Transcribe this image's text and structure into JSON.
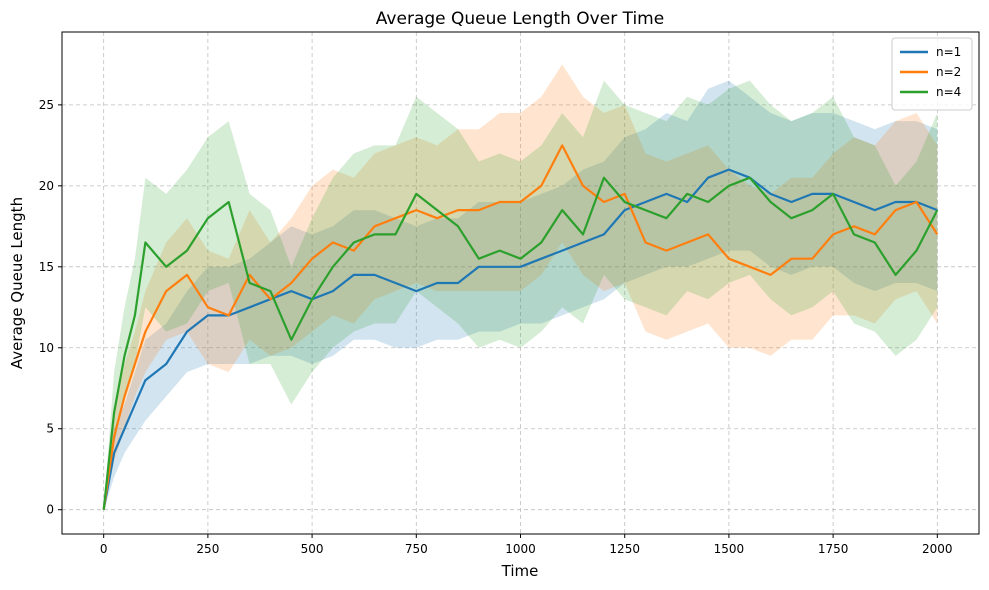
{
  "chart_data": {
    "type": "line",
    "title": "Average Queue Length Over Time",
    "xlabel": "Time",
    "ylabel": "Average Queue Length",
    "xlim": [
      -100,
      2100
    ],
    "ylim": [
      -1.5,
      29.5
    ],
    "x_ticks": [
      0,
      250,
      500,
      750,
      1000,
      1250,
      1500,
      1750,
      2000
    ],
    "y_ticks": [
      0,
      5,
      10,
      15,
      20,
      25
    ],
    "grid": true,
    "legend_position": "top-right",
    "band": "shaded variability band around each mean line",
    "series": [
      {
        "name": "n=1",
        "color": "#1f77b4",
        "x": [
          0,
          25,
          50,
          75,
          100,
          150,
          200,
          250,
          300,
          350,
          400,
          450,
          500,
          550,
          600,
          650,
          700,
          750,
          800,
          850,
          900,
          950,
          1000,
          1050,
          1100,
          1150,
          1200,
          1250,
          1300,
          1350,
          1400,
          1450,
          1500,
          1550,
          1600,
          1650,
          1700,
          1750,
          1800,
          1850,
          1900,
          1950,
          2000
        ],
        "values": [
          0,
          3.5,
          5.0,
          6.5,
          8.0,
          9.0,
          11.0,
          12.0,
          12.0,
          12.5,
          13.0,
          13.5,
          13.0,
          13.5,
          14.5,
          14.5,
          14.0,
          13.5,
          14.0,
          14.0,
          15.0,
          15.0,
          15.0,
          15.5,
          16.0,
          16.5,
          17.0,
          18.5,
          19.0,
          19.5,
          19.0,
          20.5,
          21.0,
          20.5,
          19.5,
          19.0,
          19.5,
          19.5,
          19.0,
          18.5,
          19.0,
          19.0,
          18.5
        ],
        "lower": [
          0,
          2.0,
          3.5,
          4.5,
          5.5,
          7.0,
          8.5,
          9.0,
          9.0,
          9.0,
          9.5,
          9.5,
          9.0,
          9.5,
          10.5,
          10.5,
          10.0,
          10.0,
          10.5,
          10.5,
          11.0,
          11.0,
          11.5,
          11.5,
          12.0,
          12.5,
          13.0,
          14.0,
          14.5,
          15.0,
          15.0,
          15.5,
          16.0,
          16.0,
          15.0,
          14.5,
          15.0,
          15.0,
          14.0,
          13.5,
          14.0,
          14.0,
          13.5
        ],
        "upper": [
          0,
          5.0,
          6.5,
          8.5,
          10.5,
          11.5,
          13.5,
          15.0,
          15.0,
          15.5,
          16.5,
          17.5,
          17.0,
          17.5,
          18.5,
          18.5,
          18.0,
          17.5,
          18.0,
          18.0,
          19.0,
          19.0,
          19.0,
          19.5,
          20.0,
          21.0,
          21.5,
          23.0,
          23.5,
          24.5,
          24.0,
          26.0,
          26.5,
          25.5,
          24.5,
          24.0,
          24.5,
          24.5,
          24.0,
          23.5,
          24.0,
          24.0,
          23.5
        ]
      },
      {
        "name": "n=2",
        "color": "#ff7f0e",
        "x": [
          0,
          25,
          50,
          75,
          100,
          150,
          200,
          250,
          300,
          350,
          400,
          450,
          500,
          550,
          600,
          650,
          700,
          750,
          800,
          850,
          900,
          950,
          1000,
          1050,
          1100,
          1150,
          1200,
          1250,
          1300,
          1350,
          1400,
          1450,
          1500,
          1550,
          1600,
          1650,
          1700,
          1750,
          1800,
          1850,
          1900,
          1950,
          2000
        ],
        "values": [
          0,
          4.5,
          7.0,
          9.0,
          11.0,
          13.5,
          14.5,
          12.5,
          12.0,
          14.5,
          13.0,
          14.0,
          15.5,
          16.5,
          16.0,
          17.5,
          18.0,
          18.5,
          18.0,
          18.5,
          18.5,
          19.0,
          19.0,
          20.0,
          22.5,
          20.0,
          19.0,
          19.5,
          16.5,
          16.0,
          16.5,
          17.0,
          15.5,
          15.0,
          14.5,
          15.5,
          15.5,
          17.0,
          17.5,
          17.0,
          18.5,
          19.0,
          17.0
        ],
        "lower": [
          0,
          3.0,
          5.0,
          7.0,
          8.5,
          10.5,
          11.0,
          9.0,
          8.5,
          10.5,
          9.5,
          10.0,
          11.0,
          12.0,
          11.5,
          13.0,
          13.5,
          14.0,
          13.5,
          13.5,
          13.5,
          13.5,
          13.5,
          14.5,
          16.5,
          14.5,
          13.5,
          14.0,
          11.0,
          10.5,
          11.0,
          11.5,
          10.0,
          10.0,
          9.5,
          10.5,
          10.5,
          12.0,
          12.0,
          11.5,
          13.0,
          13.5,
          11.5
        ],
        "upper": [
          0,
          6.0,
          9.0,
          11.0,
          13.5,
          16.5,
          18.0,
          16.0,
          15.5,
          18.5,
          16.5,
          18.0,
          20.0,
          21.0,
          20.5,
          22.0,
          22.5,
          23.0,
          22.5,
          23.5,
          23.5,
          24.5,
          24.5,
          25.5,
          27.5,
          25.5,
          24.5,
          25.0,
          22.0,
          21.5,
          22.0,
          22.5,
          21.0,
          20.0,
          19.5,
          20.5,
          20.5,
          22.0,
          23.0,
          22.5,
          24.0,
          24.5,
          22.5
        ]
      },
      {
        "name": "n=4",
        "color": "#2ca02c",
        "x": [
          0,
          25,
          50,
          75,
          100,
          150,
          200,
          250,
          300,
          350,
          400,
          450,
          500,
          550,
          600,
          650,
          700,
          750,
          800,
          850,
          900,
          950,
          1000,
          1050,
          1100,
          1150,
          1200,
          1250,
          1300,
          1350,
          1400,
          1450,
          1500,
          1550,
          1600,
          1650,
          1700,
          1750,
          1800,
          1850,
          1900,
          1950,
          2000
        ],
        "values": [
          0,
          6.0,
          9.5,
          12.0,
          16.5,
          15.0,
          16.0,
          18.0,
          19.0,
          14.0,
          13.5,
          10.5,
          13.0,
          15.0,
          16.5,
          17.0,
          17.0,
          19.5,
          18.5,
          17.5,
          15.5,
          16.0,
          15.5,
          16.5,
          18.5,
          17.0,
          20.5,
          19.0,
          18.5,
          18.0,
          19.5,
          19.0,
          20.0,
          20.5,
          19.0,
          18.0,
          18.5,
          19.5,
          17.0,
          16.5,
          14.5,
          16.0,
          18.5
        ],
        "lower": [
          0,
          4.0,
          7.0,
          9.0,
          12.5,
          11.0,
          11.5,
          13.5,
          14.0,
          9.0,
          9.0,
          6.5,
          8.5,
          10.0,
          11.0,
          11.5,
          11.5,
          13.5,
          12.5,
          11.5,
          10.0,
          10.5,
          10.0,
          11.0,
          12.5,
          11.5,
          14.5,
          13.0,
          12.5,
          12.0,
          13.5,
          13.0,
          14.0,
          14.5,
          13.0,
          12.0,
          12.5,
          13.5,
          11.5,
          11.0,
          9.5,
          10.5,
          12.5
        ],
        "upper": [
          0,
          8.5,
          12.5,
          15.5,
          20.5,
          19.5,
          21.0,
          23.0,
          24.0,
          19.5,
          18.5,
          15.0,
          18.0,
          20.5,
          22.0,
          22.5,
          22.5,
          25.5,
          24.5,
          23.5,
          21.5,
          22.0,
          21.5,
          22.5,
          24.5,
          23.0,
          26.5,
          25.0,
          24.5,
          24.0,
          25.5,
          25.0,
          26.0,
          26.5,
          25.0,
          24.0,
          24.5,
          25.5,
          23.0,
          22.5,
          20.0,
          21.5,
          24.5
        ]
      }
    ]
  }
}
